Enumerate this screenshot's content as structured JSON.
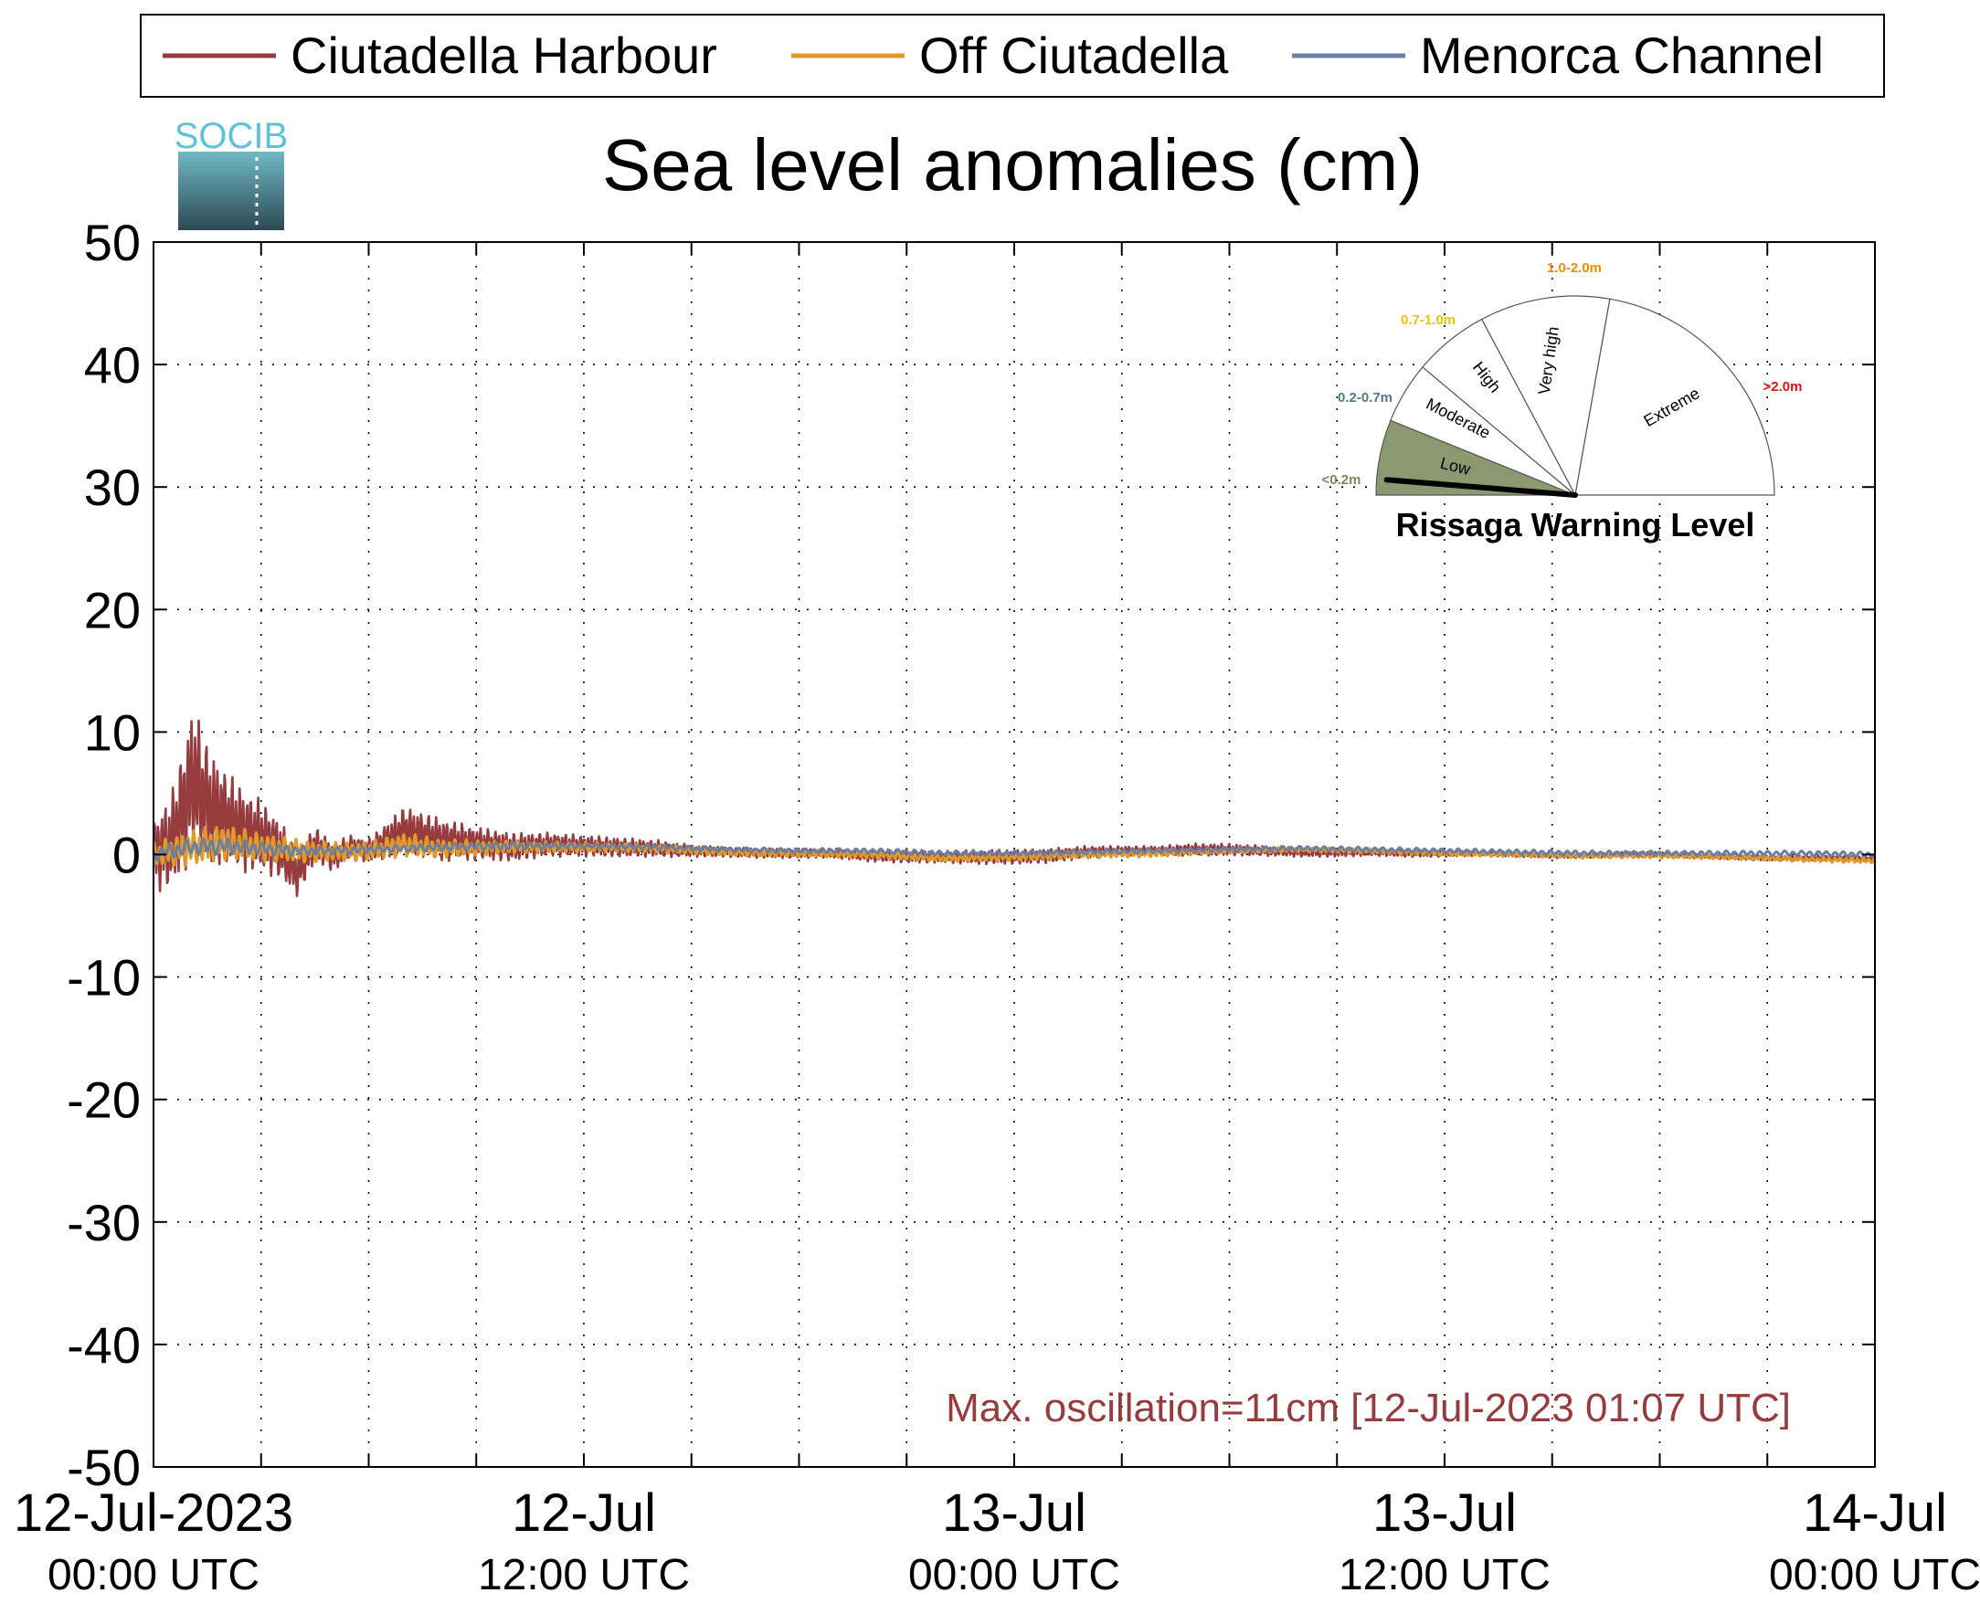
{
  "chart_data": {
    "type": "line",
    "title": "Sea level anomalies (cm)",
    "ylim": [
      -50,
      50
    ],
    "yticks": [
      50,
      40,
      30,
      20,
      10,
      0,
      -10,
      -20,
      -30,
      -40,
      -50
    ],
    "xlim_hours": [
      0,
      48
    ],
    "x_major_ticks": [
      {
        "hour": 0,
        "line1": "12-Jul-2023",
        "line2": "00:00 UTC"
      },
      {
        "hour": 12,
        "line1": "12-Jul",
        "line2": "12:00 UTC"
      },
      {
        "hour": 24,
        "line1": "13-Jul",
        "line2": "00:00 UTC"
      },
      {
        "hour": 36,
        "line1": "13-Jul",
        "line2": "12:00 UTC"
      },
      {
        "hour": 48,
        "line1": "14-Jul",
        "line2": "00:00 UTC"
      }
    ],
    "x_grid_hours": [
      3,
      6,
      9,
      12,
      15,
      18,
      21,
      24,
      27,
      30,
      33,
      36,
      39,
      42,
      45
    ],
    "grid": true,
    "legend_position": "top",
    "series": [
      {
        "name": "Ciutadella Harbour",
        "color": "#963c3e",
        "x": [
          0,
          0.5,
          1,
          1.1,
          1.5,
          2,
          2.5,
          3,
          3.5,
          4,
          4.5,
          5,
          5.5,
          6,
          7,
          8,
          9,
          10,
          11,
          12,
          13,
          14,
          15,
          16,
          17,
          18,
          19,
          20,
          21,
          22,
          23,
          24,
          25,
          26,
          27,
          28,
          29,
          30,
          31,
          32,
          33,
          34,
          35,
          36,
          37,
          38,
          39,
          40,
          41,
          42,
          43,
          44,
          45,
          46,
          47,
          48
        ],
        "y": [
          0,
          1,
          5,
          6.3,
          4,
          3,
          2,
          1.5,
          0.5,
          -1.5,
          0.8,
          -0.2,
          0.6,
          0.3,
          2,
          1.2,
          0.9,
          0.6,
          0.8,
          0.7,
          0.6,
          0.5,
          0.3,
          0.2,
          0.1,
          0.1,
          0.1,
          -0.1,
          -0.1,
          -0.2,
          -0.2,
          -0.2,
          -0.1,
          0.2,
          0.3,
          0.3,
          0.4,
          0.4,
          0.3,
          0.2,
          0.2,
          0.2,
          0.1,
          0.1,
          0.1,
          0,
          -0.1,
          -0.1,
          0,
          0,
          -0.1,
          -0.2,
          -0.3,
          -0.3,
          -0.3,
          -0.4
        ],
        "amplitude_envelope": [
          3,
          4,
          6,
          6.5,
          5,
          4,
          3.5,
          3,
          2.5,
          2,
          1.5,
          1.2,
          1,
          1,
          2,
          1.8,
          1.4,
          1.2,
          1,
          0.9,
          0.8,
          0.7,
          0.5,
          0.4,
          0.4,
          0.4,
          0.4,
          0.5,
          0.6,
          0.5,
          0.6,
          0.6,
          0.6,
          0.5,
          0.4,
          0.4,
          0.5,
          0.5,
          0.4,
          0.4,
          0.4,
          0.3,
          0.3,
          0.3,
          0.2,
          0.2,
          0.2,
          0.2,
          0.2,
          0.2,
          0.2,
          0.2,
          0.2,
          0.2,
          0.2,
          0.2
        ]
      },
      {
        "name": "Off Ciutadella",
        "color": "#e09a2a",
        "x": [
          0,
          1,
          2,
          3,
          4,
          5,
          6,
          7,
          8,
          10,
          12,
          14,
          16,
          18,
          20,
          22,
          24,
          26,
          28,
          30,
          32,
          34,
          36,
          38,
          40,
          42,
          44,
          46,
          48
        ],
        "y": [
          0,
          0.5,
          1,
          0.6,
          0.3,
          0.2,
          0.3,
          0.8,
          0.5,
          0.6,
          0.6,
          0.5,
          0.2,
          0.1,
          0,
          -0.3,
          -0.2,
          0,
          0.1,
          0.3,
          0.4,
          0.3,
          0.1,
          0,
          -0.1,
          -0.1,
          -0.2,
          -0.4,
          -0.5
        ],
        "amplitude_envelope": [
          1,
          1.5,
          1.5,
          1.2,
          1,
          0.8,
          0.8,
          1,
          0.8,
          0.5,
          0.4,
          0.3,
          0.3,
          0.3,
          0.3,
          0.3,
          0.3,
          0.3,
          0.3,
          0.2,
          0.2,
          0.2,
          0.2,
          0.2,
          0.2,
          0.2,
          0.2,
          0.2,
          0.2
        ]
      },
      {
        "name": "Menorca Channel",
        "color": "#6a7fa6",
        "x": [
          0,
          1,
          2,
          3,
          4,
          5,
          6,
          8,
          10,
          12,
          14,
          16,
          18,
          20,
          22,
          24,
          26,
          28,
          30,
          32,
          34,
          36,
          38,
          40,
          42,
          44,
          46,
          48
        ],
        "y": [
          0,
          0.6,
          0.7,
          0.5,
          0.3,
          0.3,
          0.4,
          0.6,
          0.7,
          0.7,
          0.6,
          0.4,
          0.3,
          0.3,
          0.1,
          0.1,
          0.2,
          0.3,
          0.4,
          0.5,
          0.4,
          0.3,
          0.2,
          0.1,
          0.1,
          0.1,
          0.1,
          0
        ],
        "amplitude_envelope": [
          0.5,
          0.7,
          0.7,
          0.5,
          0.4,
          0.3,
          0.3,
          0.3,
          0.3,
          0.2,
          0.2,
          0.2,
          0.2,
          0.2,
          0.2,
          0.2,
          0.2,
          0.2,
          0.2,
          0.2,
          0.2,
          0.2,
          0.2,
          0.2,
          0.2,
          0.2,
          0.2,
          0.2
        ]
      }
    ],
    "annotation": "Max. oscillation=11cm [12-Jul-2023 01:07 UTC]",
    "annotation_color": "#963c3e"
  },
  "logo": {
    "text": "SOCIB",
    "color": "#5ec3d6"
  },
  "gauge": {
    "title": "Rissaga Warning Level",
    "sectors": [
      {
        "label": "Low",
        "range": "<0.2m",
        "range_color": "#7a8a5a"
      },
      {
        "label": "Moderate",
        "range": "0.2-0.7m",
        "range_color": "#4f7a86"
      },
      {
        "label": "High",
        "range": "0.7-1.0m",
        "range_color": "#e6c800"
      },
      {
        "label": "Very high",
        "range": "1.0-2.0m",
        "range_color": "#f08a00"
      },
      {
        "label": "Extreme",
        "range": ">2.0m",
        "range_color": "#e01010"
      }
    ],
    "active_level": "Low",
    "active_color": "#8c9870",
    "needle_fraction_of_low_sector": 0.6
  }
}
